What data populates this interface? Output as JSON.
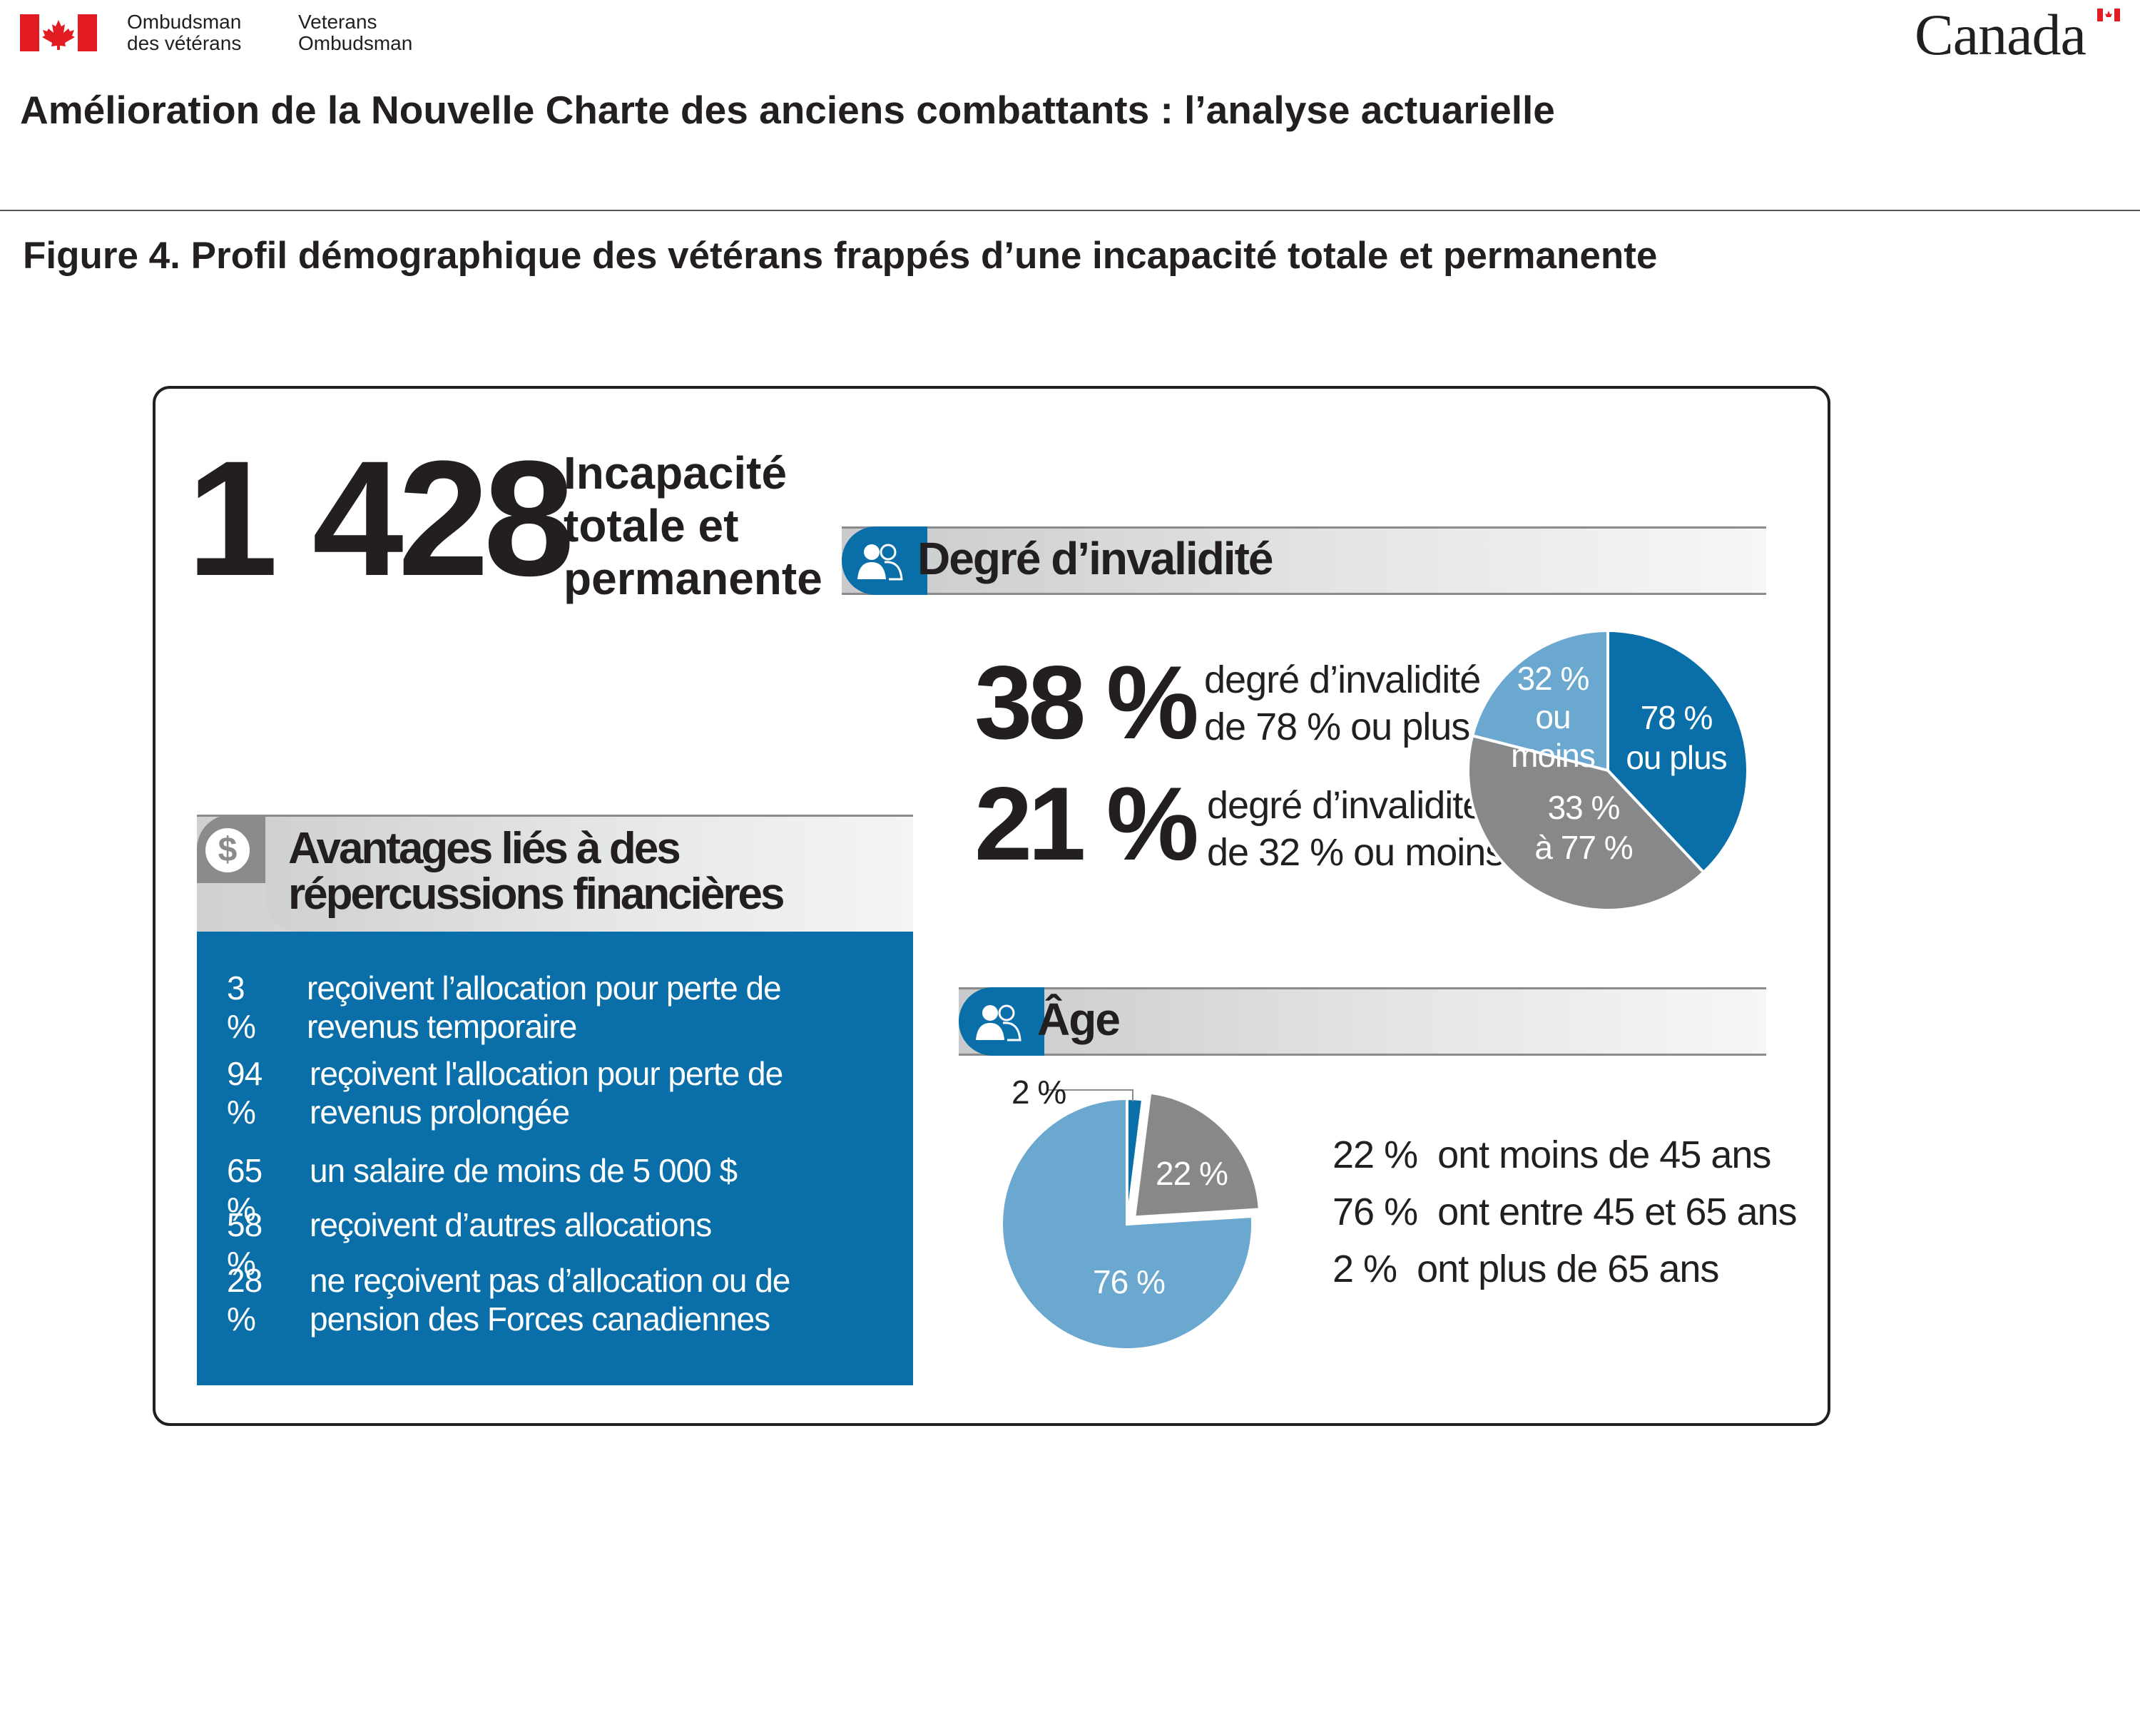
{
  "header": {
    "dept_fr_line1": "Ombudsman",
    "dept_fr_line2": "des vétérans",
    "dept_en_line1": "Veterans",
    "dept_en_line2": "Ombudsman",
    "wordmark": "Canada",
    "document_title": "Amélioration de la Nouvelle Charte des anciens combattants : l’analyse actuarielle"
  },
  "figure_title": "Figure 4. Profil démographique des vétérans frappés d’une incapacité totale et permanente",
  "total": {
    "number": "1 428",
    "label_line1": "Incapacité",
    "label_line2": "totale et",
    "label_line3": "permanente"
  },
  "disability_section": {
    "title": "Degré d’invalidité",
    "stat1_pct": "38 %",
    "stat1_line1": "degré d’invalidité",
    "stat1_line2": "de 78 % ou plus",
    "stat2_pct": "21 %",
    "stat2_line1": "degré d’invalidité",
    "stat2_line2": "de 32 % ou moins"
  },
  "age_section": {
    "title": "Âge",
    "lines": [
      {
        "pct": "22 %",
        "text": "ont moins de 45 ans"
      },
      {
        "pct": "76 %",
        "text": "ont entre 45 et 65 ans"
      },
      {
        "pct": "2 %",
        "text": "ont plus de 65 ans"
      }
    ]
  },
  "finance_section": {
    "title_line1": "Avantages liés à des",
    "title_line2": "répercussions financières",
    "items": [
      {
        "pct": "3 %",
        "line1": "reçoivent l’allocation pour perte de",
        "line2": "revenus temporaire"
      },
      {
        "pct": "94 %",
        "line1": "reçoivent l'allocation pour perte de",
        "line2": "revenus prolongée"
      },
      {
        "pct": "65 %",
        "line1": "un salaire de moins de 5 000 $",
        "line2": ""
      },
      {
        "pct": "58 %",
        "line1": "reçoivent d’autres allocations",
        "line2": ""
      },
      {
        "pct": "28 %",
        "line1": "ne reçoivent pas d’allocation ou de",
        "line2": "pension des Forces canadiennes"
      }
    ]
  },
  "colors": {
    "dark_blue": "#0a6fa8",
    "light_blue": "#6aa8d0",
    "gray": "#87888a",
    "red": "#e31b23"
  },
  "chart_data": [
    {
      "type": "pie",
      "title": "Degré d’invalidité",
      "slices": [
        {
          "label_line1": "78 %",
          "label_line2": "ou plus",
          "value": 38,
          "color": "#0a6fa8"
        },
        {
          "label_line1": "33 %",
          "label_line2": "à 77 %",
          "value": 41,
          "color": "#87888a"
        },
        {
          "label_line1": "32 %",
          "label_line2": "ou moins",
          "value": 21,
          "color": "#6aa8d0"
        }
      ]
    },
    {
      "type": "pie",
      "title": "Âge",
      "slices": [
        {
          "label": "2 %",
          "value": 2,
          "color": "#0a6fa8"
        },
        {
          "label": "22 %",
          "value": 22,
          "color": "#87888a"
        },
        {
          "label": "76 %",
          "value": 76,
          "color": "#6aa8d0"
        }
      ]
    }
  ]
}
